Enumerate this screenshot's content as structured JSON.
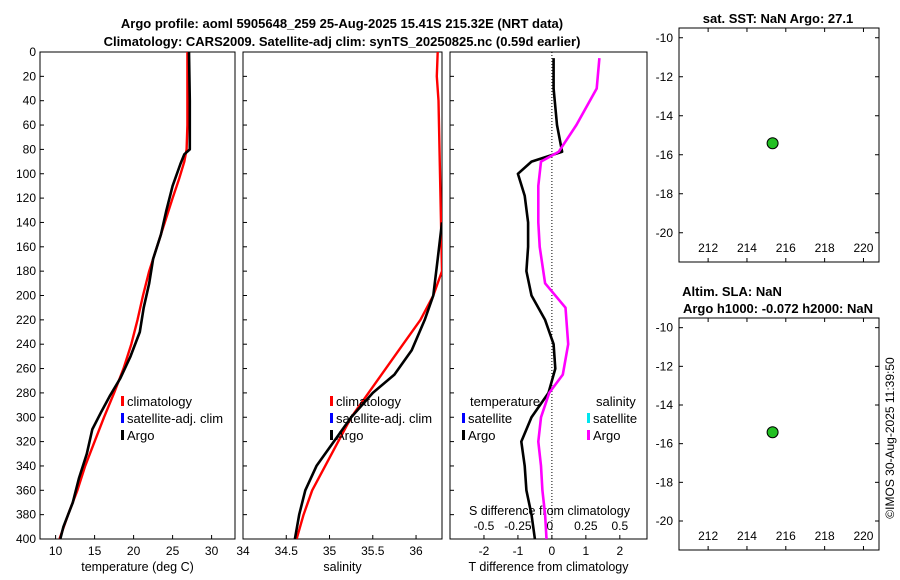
{
  "header": {
    "line1": "Argo profile: aoml 5905648_259 25-Aug-2025 15.41S 215.32E (NRT data)",
    "line2": "Climatology: CARS2009. Satellite-adj clim: synTS_20250825.nc (0.59d earlier)"
  },
  "footer": {
    "timestamp": "©IMOS 30-Aug-2025 11:39:50"
  },
  "colors": {
    "climatology": "#ff0000",
    "satellite": "#0000ff",
    "argo": "#000000",
    "sal_sat": "#00e5ee",
    "sal_argo": "#ff00ff",
    "marker": "#22c022"
  },
  "chart_data": [
    {
      "id": "temperature",
      "type": "line",
      "xlabel": "temperature (deg C)",
      "xlim": [
        8,
        33
      ],
      "xticks": [
        10,
        15,
        20,
        25,
        30
      ],
      "ylim": [
        0,
        400
      ],
      "yticks": [
        0,
        20,
        40,
        60,
        80,
        100,
        120,
        140,
        160,
        180,
        200,
        220,
        240,
        260,
        280,
        300,
        320,
        340,
        360,
        380,
        400
      ],
      "legend": [
        "climatology",
        "satellite-adj. clim",
        "Argo"
      ],
      "series": [
        {
          "name": "climatology",
          "points": [
            [
              26.9,
              0
            ],
            [
              26.9,
              20
            ],
            [
              26.9,
              60
            ],
            [
              26.8,
              80
            ],
            [
              26.5,
              90
            ],
            [
              25.8,
              105
            ],
            [
              25,
              120
            ],
            [
              24,
              140
            ],
            [
              23,
              160
            ],
            [
              22,
              180
            ],
            [
              21.2,
              200
            ],
            [
              20.5,
              220
            ],
            [
              19.7,
              240
            ],
            [
              18.7,
              260
            ],
            [
              17.5,
              280
            ],
            [
              16.2,
              300
            ],
            [
              15,
              320
            ],
            [
              13.8,
              340
            ],
            [
              12.8,
              360
            ],
            [
              11.6,
              380
            ],
            [
              10.5,
              400
            ]
          ]
        },
        {
          "name": "Argo",
          "points": [
            [
              27.1,
              0
            ],
            [
              27.2,
              40
            ],
            [
              27.2,
              80
            ],
            [
              26.5,
              84
            ],
            [
              26,
              92
            ],
            [
              25,
              110
            ],
            [
              24.2,
              130
            ],
            [
              23.5,
              150
            ],
            [
              22.5,
              170
            ],
            [
              22,
              190
            ],
            [
              21.3,
              210
            ],
            [
              20.8,
              230
            ],
            [
              19.6,
              250
            ],
            [
              18.3,
              268
            ],
            [
              17,
              282
            ],
            [
              15.9,
              295
            ],
            [
              14.7,
              310
            ],
            [
              14,
              330
            ],
            [
              13,
              350
            ],
            [
              12.2,
              370
            ],
            [
              11,
              390
            ],
            [
              10.6,
              400
            ]
          ]
        }
      ]
    },
    {
      "id": "salinity",
      "type": "line",
      "xlabel": "salinity",
      "xlim": [
        34,
        36.3
      ],
      "xticks": [
        34,
        34.5,
        35,
        35.5,
        36
      ],
      "ylim": [
        0,
        400
      ],
      "legend": [
        "climatology",
        "satellite-adj. clim",
        "Argo"
      ],
      "series": [
        {
          "name": "climatology",
          "points": [
            [
              36.25,
              0
            ],
            [
              36.24,
              20
            ],
            [
              36.26,
              40
            ],
            [
              36.3,
              180
            ],
            [
              36.2,
              200
            ],
            [
              36.05,
              220
            ],
            [
              35.85,
              240
            ],
            [
              35.65,
              260
            ],
            [
              35.45,
              280
            ],
            [
              35.25,
              300
            ],
            [
              35.1,
              320
            ],
            [
              34.95,
              340
            ],
            [
              34.8,
              360
            ],
            [
              34.7,
              380
            ],
            [
              34.62,
              400
            ]
          ]
        },
        {
          "name": "Argo",
          "points": [
            [
              36.3,
              140
            ],
            [
              36.25,
              170
            ],
            [
              36.2,
              200
            ],
            [
              36.1,
              220
            ],
            [
              35.95,
              245
            ],
            [
              35.75,
              265
            ],
            [
              35.5,
              280
            ],
            [
              35.25,
              300
            ],
            [
              35.05,
              320
            ],
            [
              34.85,
              340
            ],
            [
              34.72,
              360
            ],
            [
              34.65,
              380
            ],
            [
              34.6,
              400
            ]
          ]
        }
      ]
    },
    {
      "id": "difference",
      "type": "line",
      "xlabel": "T difference from climatology",
      "xlabel_top": "S difference from climatology",
      "xlim": [
        -3,
        2.8
      ],
      "xticks": [
        -2,
        -1,
        0,
        1,
        2
      ],
      "xticks_top": [
        "-0.5",
        "-0.25",
        "0",
        "0.25",
        "0.5"
      ],
      "ylim": [
        0,
        400
      ],
      "legend_headers": [
        "temperature",
        "salinity"
      ],
      "legend_left": [
        "satellite",
        "Argo"
      ],
      "legend_right": [
        "satellite",
        "Argo"
      ],
      "series": [
        {
          "name": "T Argo",
          "points": [
            [
              0.05,
              5
            ],
            [
              0.05,
              30
            ],
            [
              0.15,
              60
            ],
            [
              0.3,
              82
            ],
            [
              -0.6,
              90
            ],
            [
              -1,
              100
            ],
            [
              -0.8,
              118
            ],
            [
              -0.7,
              140
            ],
            [
              -0.7,
              160
            ],
            [
              -0.75,
              180
            ],
            [
              -0.6,
              200
            ],
            [
              -0.2,
              220
            ],
            [
              0.05,
              240
            ],
            [
              0.1,
              260
            ],
            [
              -0.1,
              280
            ],
            [
              -0.6,
              300
            ],
            [
              -0.9,
              320
            ],
            [
              -0.8,
              340
            ],
            [
              -0.75,
              360
            ],
            [
              -0.6,
              380
            ],
            [
              -0.5,
              400
            ]
          ]
        },
        {
          "name": "S Argo",
          "points": [
            [
              0.35,
              5
            ],
            [
              0.33,
              30
            ],
            [
              0.18,
              60
            ],
            [
              0.05,
              82
            ],
            [
              -0.08,
              90
            ],
            [
              -0.1,
              110
            ],
            [
              -0.1,
              140
            ],
            [
              -0.09,
              160
            ],
            [
              -0.05,
              190
            ],
            [
              0.1,
              210
            ],
            [
              0.12,
              240
            ],
            [
              0.08,
              265
            ],
            [
              -0.02,
              280
            ],
            [
              -0.08,
              300
            ],
            [
              -0.1,
              320
            ],
            [
              -0.08,
              340
            ],
            [
              -0.07,
              360
            ],
            [
              -0.05,
              380
            ],
            [
              -0.04,
              400
            ]
          ]
        }
      ]
    },
    {
      "id": "sst_map",
      "type": "scatter",
      "title": "sat. SST: NaN Argo: 27.1",
      "xlim": [
        210.5,
        220.8
      ],
      "ylim": [
        -21.5,
        -9.5
      ],
      "xticks": [
        212,
        214,
        216,
        218,
        220
      ],
      "yticks": [
        -10,
        -12,
        -14,
        -16,
        -18,
        -20
      ],
      "points": [
        [
          215.32,
          -15.41
        ]
      ]
    },
    {
      "id": "sla_map",
      "type": "scatter",
      "title": "Altim. SLA: NaN",
      "subtitle": "Argo h1000: -0.072 h2000: NaN",
      "xlim": [
        210.5,
        220.8
      ],
      "ylim": [
        -21.5,
        -9.5
      ],
      "xticks": [
        212,
        214,
        216,
        218,
        220
      ],
      "yticks": [
        -10,
        -12,
        -14,
        -16,
        -18,
        -20
      ],
      "points": [
        [
          215.32,
          -15.41
        ]
      ]
    }
  ]
}
